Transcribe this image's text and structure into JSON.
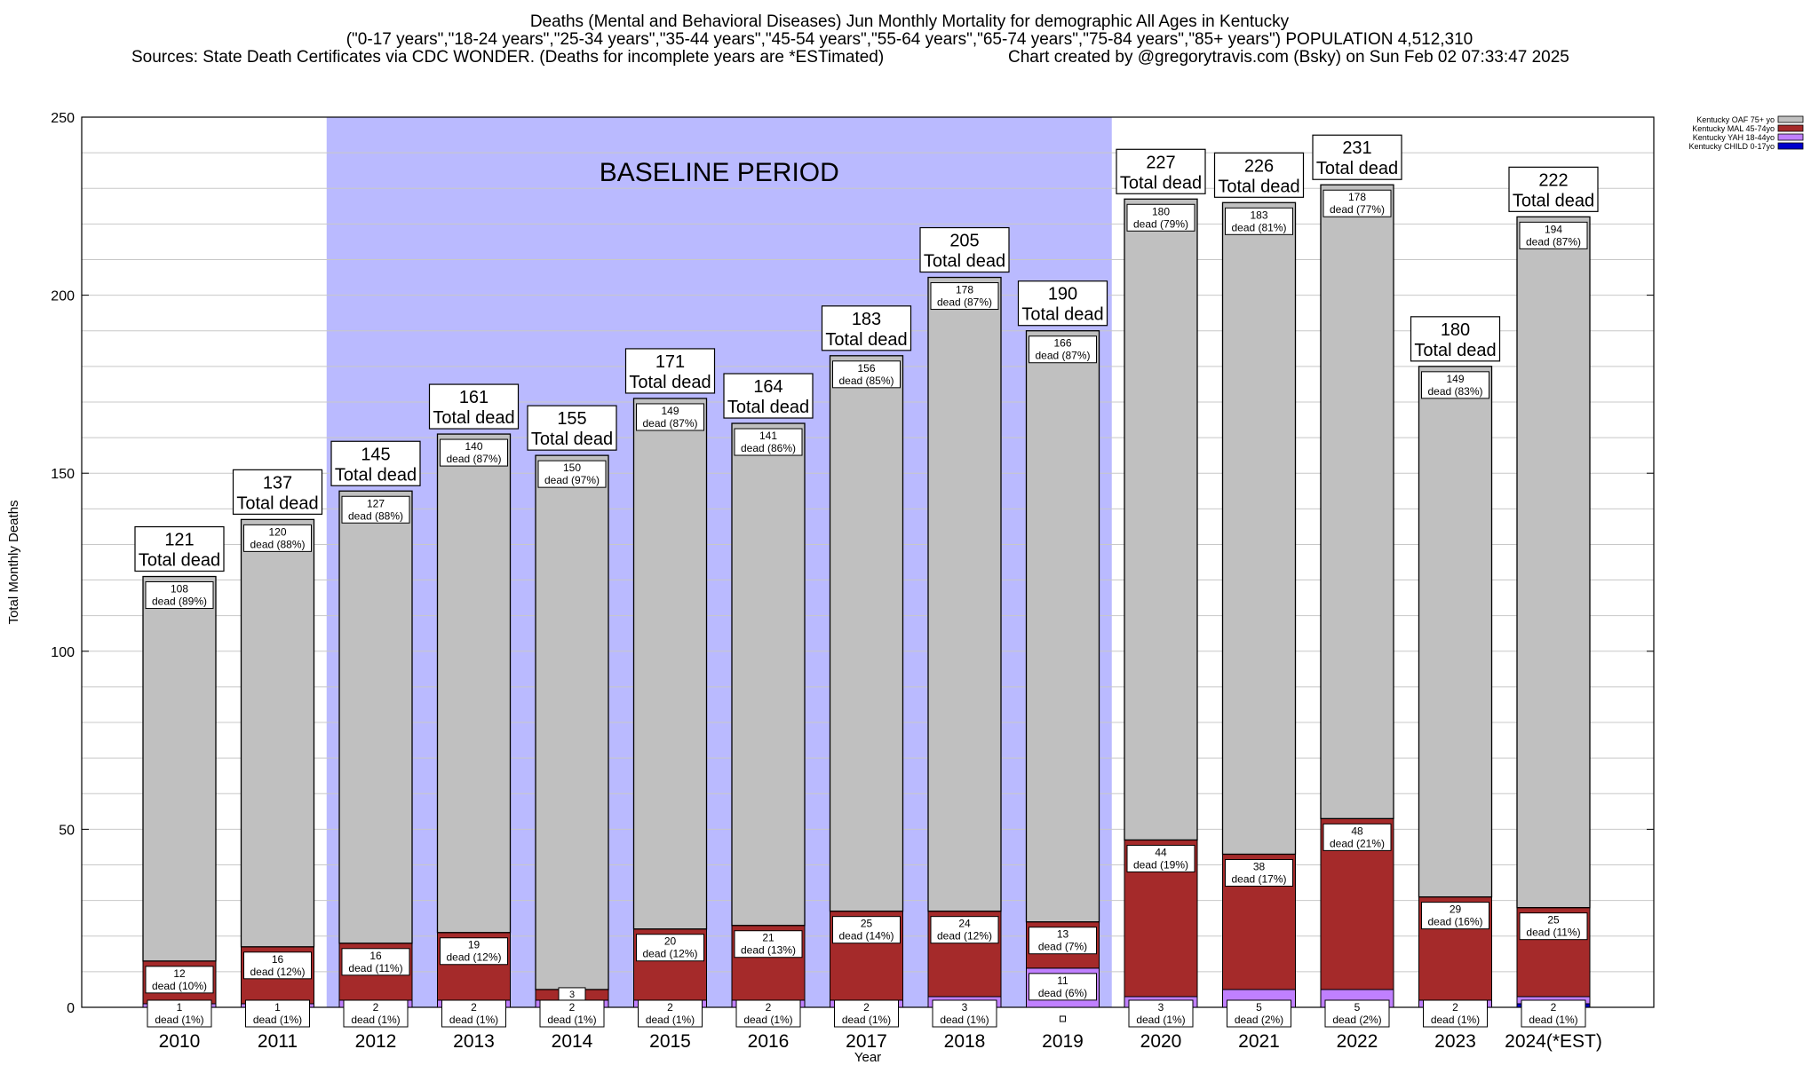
{
  "titles": {
    "line1": "Deaths (Mental and Behavioral Diseases) Jun Monthly Mortality for demographic All Ages in Kentucky",
    "line2": "(\"0-17 years\",\"18-24 years\",\"25-34 years\",\"35-44 years\",\"45-54 years\",\"55-64 years\",\"65-74 years\",\"75-84 years\",\"85+ years\") POPULATION 4,512,310",
    "line3_left": "Sources: State Death Certificates via CDC WONDER. (Deaths for incomplete years are *ESTimated)",
    "line3_right": "Chart created by @gregorytravis.com (Bsky) on Sun Feb 02 07:33:47 2025"
  },
  "colors": {
    "oaf": "#c0c0c0",
    "mal": "#a52a2a",
    "yah": "#c080ff",
    "child": "#0000cc",
    "baseline": "#babaff"
  },
  "chart_data": {
    "type": "bar",
    "stacked": true,
    "xlabel": "Year",
    "ylabel": "Total Monthly Deaths",
    "ylim": [
      0,
      250
    ],
    "yticks": [
      0,
      50,
      100,
      150,
      200,
      250
    ],
    "grid": true,
    "legend_position": "top-right",
    "categories": [
      "2010",
      "2011",
      "2012",
      "2013",
      "2014",
      "2015",
      "2016",
      "2017",
      "2018",
      "2019",
      "2020",
      "2021",
      "2022",
      "2023",
      "2024(*EST)"
    ],
    "baseline_period": {
      "label": "BASELINE PERIOD",
      "from": "2012",
      "to": "2019"
    },
    "totals": [
      121,
      137,
      145,
      161,
      155,
      171,
      164,
      183,
      205,
      190,
      227,
      226,
      231,
      180,
      222
    ],
    "total_suffix": "Total dead",
    "series": [
      {
        "name": "Kentucky CHILD 0-17yo",
        "color_key": "child",
        "values": [
          0,
          0,
          0,
          0,
          0,
          0,
          0,
          0,
          0,
          0,
          0,
          0,
          0,
          0,
          1
        ]
      },
      {
        "name": "Kentucky YAH 18-44yo",
        "color_key": "yah",
        "values": [
          1,
          1,
          2,
          2,
          2,
          2,
          2,
          2,
          3,
          11,
          3,
          5,
          5,
          2,
          2
        ],
        "labels": [
          "1\ndead (1%)",
          "1\ndead (1%)",
          "2\ndead (1%)",
          "2\ndead (1%)",
          "2\ndead (1%)",
          "2\ndead (1%)",
          "2\ndead (1%)",
          "2\ndead (1%)",
          "3\ndead (1%)",
          "11\ndead (6%)",
          "3\ndead (1%)",
          "5\ndead (2%)",
          "5\ndead (2%)",
          "2\ndead (1%)",
          "2\ndead (1%)"
        ]
      },
      {
        "name": "Kentucky MAL 45-74yo",
        "color_key": "mal",
        "values": [
          12,
          16,
          16,
          19,
          3,
          20,
          21,
          25,
          24,
          13,
          44,
          38,
          48,
          29,
          25
        ],
        "labels": [
          "12\ndead (10%)",
          "16\ndead (12%)",
          "16\ndead (11%)",
          "19\ndead (12%)",
          "3\n",
          "20\ndead (12%)",
          "21\ndead (13%)",
          "25\ndead (14%)",
          "24\ndead (12%)",
          "13\ndead (7%)",
          "44\ndead (19%)",
          "38\ndead (17%)",
          "48\ndead (21%)",
          "29\ndead (16%)",
          "25\ndead (11%)"
        ]
      },
      {
        "name": "Kentucky OAF 75+ yo",
        "color_key": "oaf",
        "values": [
          108,
          120,
          127,
          140,
          150,
          149,
          141,
          156,
          178,
          166,
          180,
          183,
          178,
          149,
          194
        ],
        "labels": [
          "108\ndead (89%)",
          "120\ndead (88%)",
          "127\ndead (88%)",
          "140\ndead (87%)",
          "150\ndead (97%)",
          "149\ndead (87%)",
          "141\ndead (86%)",
          "156\ndead (85%)",
          "178\ndead (87%)",
          "166\ndead (87%)",
          "180\ndead (79%)",
          "183\ndead (81%)",
          "178\ndead (77%)",
          "149\ndead (83%)",
          "194\ndead (87%)"
        ]
      }
    ],
    "legend": [
      {
        "name": "Kentucky OAF 75+ yo",
        "color_key": "oaf"
      },
      {
        "name": "Kentucky MAL 45-74yo",
        "color_key": "mal"
      },
      {
        "name": "Kentucky YAH 18-44yo",
        "color_key": "yah"
      },
      {
        "name": "Kentucky CHILD 0-17yo",
        "color_key": "child"
      }
    ]
  }
}
